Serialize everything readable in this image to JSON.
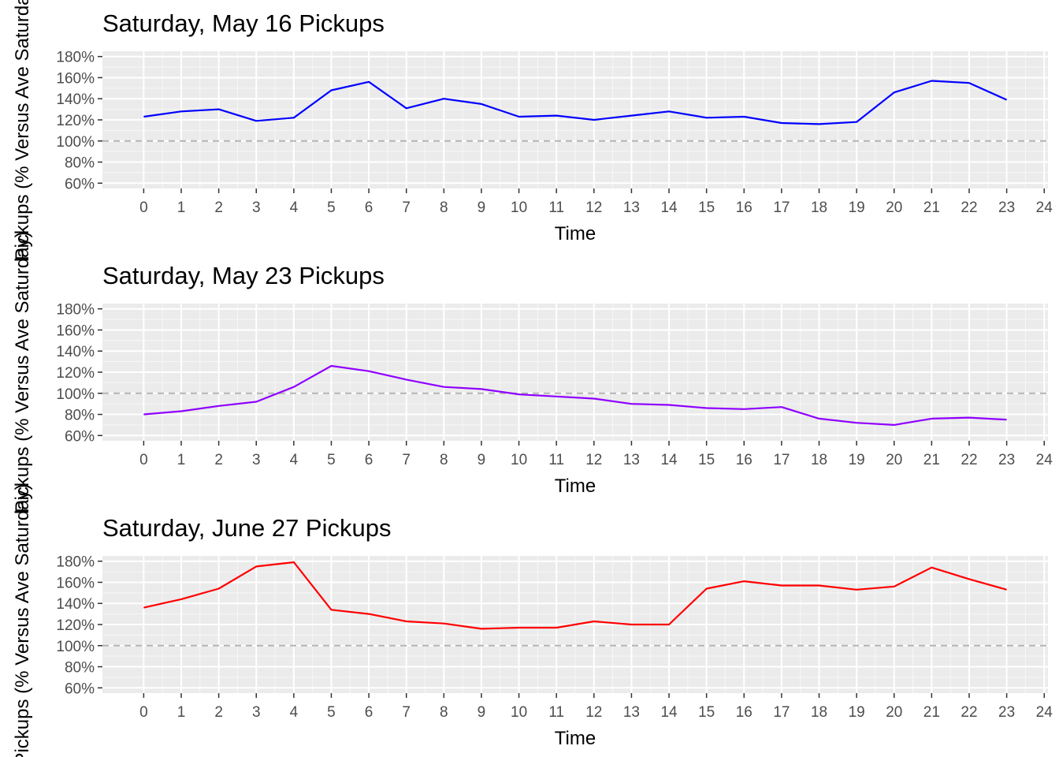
{
  "chart_data": [
    {
      "type": "line",
      "title": "Saturday, May 16 Pickups",
      "xlabel": "Time",
      "ylabel": "Pickups (% Versus Ave Saturday)",
      "x_ticks": [
        "0",
        "1",
        "2",
        "3",
        "4",
        "5",
        "6",
        "7",
        "8",
        "9",
        "10",
        "11",
        "12",
        "13",
        "14",
        "15",
        "16",
        "17",
        "18",
        "19",
        "20",
        "21",
        "22",
        "23",
        "24"
      ],
      "y_ticks": [
        "60%",
        "80%",
        "100%",
        "120%",
        "140%",
        "160%",
        "180%"
      ],
      "xlim": [
        -1.1,
        24.1
      ],
      "ylim": [
        55,
        185
      ],
      "reference_line": 100,
      "series": [
        {
          "color": "#0000ff",
          "x": [
            0,
            1,
            2,
            3,
            4,
            5,
            6,
            7,
            8,
            9,
            10,
            11,
            12,
            13,
            14,
            15,
            16,
            17,
            18,
            19,
            20,
            21,
            22,
            23
          ],
          "values": [
            123,
            128,
            130,
            119,
            122,
            148,
            156,
            131,
            140,
            135,
            123,
            124,
            120,
            124,
            128,
            122,
            123,
            117,
            116,
            118,
            146,
            157,
            155,
            139
          ]
        }
      ]
    },
    {
      "type": "line",
      "title": "Saturday, May 23 Pickups",
      "xlabel": "Time",
      "ylabel": "Pickups (% Versus Ave Saturday)",
      "x_ticks": [
        "0",
        "1",
        "2",
        "3",
        "4",
        "5",
        "6",
        "7",
        "8",
        "9",
        "10",
        "11",
        "12",
        "13",
        "14",
        "15",
        "16",
        "17",
        "18",
        "19",
        "20",
        "21",
        "22",
        "23",
        "24"
      ],
      "y_ticks": [
        "60%",
        "80%",
        "100%",
        "120%",
        "140%",
        "160%",
        "180%"
      ],
      "xlim": [
        -1.1,
        24.1
      ],
      "ylim": [
        55,
        185
      ],
      "reference_line": 100,
      "series": [
        {
          "color": "#8f00ff",
          "x": [
            0,
            1,
            2,
            3,
            4,
            5,
            6,
            7,
            8,
            9,
            10,
            11,
            12,
            13,
            14,
            15,
            16,
            17,
            18,
            19,
            20,
            21,
            22,
            23
          ],
          "values": [
            80,
            83,
            88,
            92,
            106,
            126,
            121,
            113,
            106,
            104,
            99,
            97,
            95,
            90,
            89,
            86,
            85,
            87,
            76,
            72,
            70,
            76,
            77,
            75
          ]
        }
      ]
    },
    {
      "type": "line",
      "title": "Saturday, June 27 Pickups",
      "xlabel": "Time",
      "ylabel": "Pickups (% Versus Ave Saturday)",
      "x_ticks": [
        "0",
        "1",
        "2",
        "3",
        "4",
        "5",
        "6",
        "7",
        "8",
        "9",
        "10",
        "11",
        "12",
        "13",
        "14",
        "15",
        "16",
        "17",
        "18",
        "19",
        "20",
        "21",
        "22",
        "23",
        "24"
      ],
      "y_ticks": [
        "60%",
        "80%",
        "100%",
        "120%",
        "140%",
        "160%",
        "180%"
      ],
      "xlim": [
        -1.1,
        24.1
      ],
      "ylim": [
        55,
        185
      ],
      "reference_line": 100,
      "series": [
        {
          "color": "#ff0000",
          "x": [
            0,
            1,
            2,
            3,
            4,
            5,
            6,
            7,
            8,
            9,
            10,
            11,
            12,
            13,
            14,
            15,
            16,
            17,
            18,
            19,
            20,
            21,
            22,
            23
          ],
          "values": [
            136,
            144,
            154,
            175,
            179,
            134,
            130,
            123,
            121,
            116,
            117,
            117,
            123,
            120,
            120,
            154,
            161,
            157,
            157,
            153,
            156,
            174,
            163,
            153
          ]
        }
      ]
    }
  ]
}
